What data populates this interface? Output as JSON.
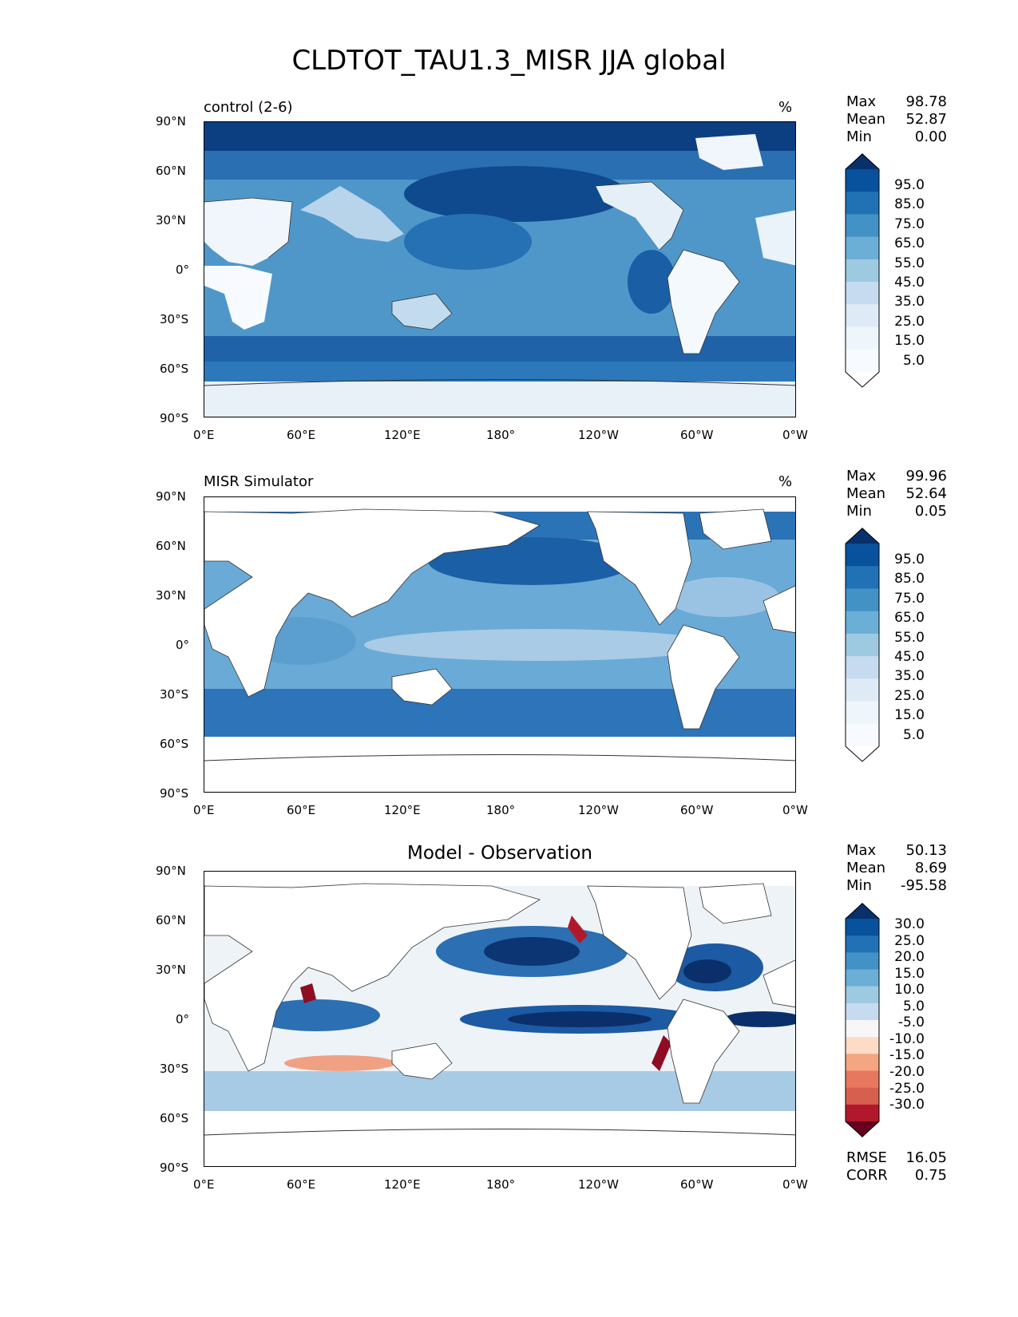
{
  "title": "CLDTOT_TAU1.3_MISR JJA global",
  "axes": {
    "lat_ticks": [
      "90°N",
      "60°N",
      "30°N",
      "0°",
      "30°S",
      "60°S",
      "90°S"
    ],
    "lon_ticks": [
      "0°E",
      "60°E",
      "120°E",
      "180°",
      "120°W",
      "60°W",
      "0°W"
    ]
  },
  "panels": [
    {
      "subtitle": "control (2-6)",
      "units": "%",
      "stats": {
        "max_label": "Max",
        "max": "98.78",
        "mean_label": "Mean",
        "mean": "52.87",
        "min_label": "Min",
        "min": "0.00"
      },
      "colorbar": {
        "labels": [
          "95.0",
          "85.0",
          "75.0",
          "65.0",
          "55.0",
          "45.0",
          "35.0",
          "25.0",
          "15.0",
          "5.0"
        ],
        "colors": [
          "#08306b",
          "#08519c",
          "#2171b5",
          "#4292c6",
          "#6baed6",
          "#9ecae1",
          "#c6dbef",
          "#deebf7",
          "#eef5fb",
          "#f7fbff",
          "#ffffff"
        ]
      }
    },
    {
      "subtitle": "MISR Simulator",
      "units": "%",
      "stats": {
        "max_label": "Max",
        "max": "99.96",
        "mean_label": "Mean",
        "mean": "52.64",
        "min_label": "Min",
        "min": "0.05"
      },
      "colorbar": {
        "labels": [
          "95.0",
          "85.0",
          "75.0",
          "65.0",
          "55.0",
          "45.0",
          "35.0",
          "25.0",
          "15.0",
          "5.0"
        ],
        "colors": [
          "#08306b",
          "#08519c",
          "#2171b5",
          "#4292c6",
          "#6baed6",
          "#9ecae1",
          "#c6dbef",
          "#deebf7",
          "#eef5fb",
          "#f7fbff",
          "#ffffff"
        ]
      }
    },
    {
      "subtitle": "Model - Observation",
      "units": "",
      "stats": {
        "max_label": "Max",
        "max": "50.13",
        "mean_label": "Mean",
        "mean": "8.69",
        "min_label": "Min",
        "min": "-95.58"
      },
      "colorbar": {
        "labels": [
          "30.0",
          "25.0",
          "20.0",
          "15.0",
          "10.0",
          "5.0",
          "-5.0",
          "-10.0",
          "-15.0",
          "-20.0",
          "-25.0",
          "-30.0"
        ],
        "colors": [
          "#08306b",
          "#08519c",
          "#2171b5",
          "#4292c6",
          "#6baed6",
          "#9ecae1",
          "#c6dbef",
          "#f7f7f7",
          "#fddbc7",
          "#f4a582",
          "#e7785f",
          "#d6604d",
          "#b2182b",
          "#67001f"
        ]
      },
      "metrics": {
        "rmse_label": "RMSE",
        "rmse": "16.05",
        "corr_label": "CORR",
        "corr": "0.75"
      }
    }
  ]
}
